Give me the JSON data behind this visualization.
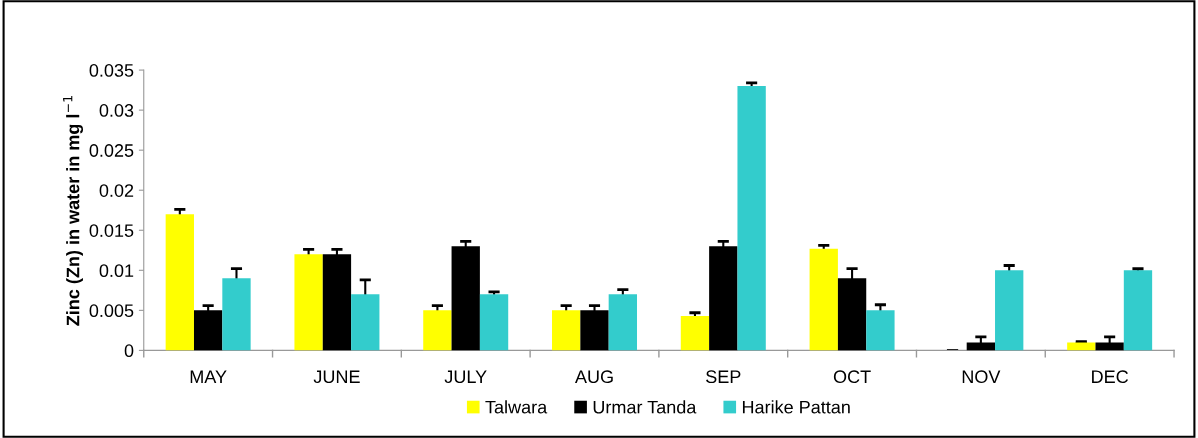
{
  "chart_data": {
    "type": "bar",
    "ylabel": "Zinc (Zn) in water in mg l$^{−1}$",
    "categories": [
      "MAY",
      "JUNE",
      "JULY",
      "AUG",
      "SEP",
      "OCT",
      "NOV",
      "DEC"
    ],
    "series": [
      {
        "name": "Talwara",
        "color": "#ffff00",
        "values": [
          0.017,
          0.012,
          0.005,
          0.005,
          0.0043,
          0.0127,
          0.0,
          0.001
        ],
        "errors": [
          0.0006,
          0.0006,
          0.0006,
          0.0006,
          0.0004,
          0.0004,
          null,
          0.0001
        ]
      },
      {
        "name": "Urmar Tanda",
        "color": "#000000",
        "values": [
          0.005,
          0.012,
          0.013,
          0.005,
          0.013,
          0.009,
          0.001,
          0.001
        ],
        "errors": [
          0.0006,
          0.0006,
          0.0006,
          0.0006,
          0.0006,
          0.0012,
          0.0007,
          0.0007
        ]
      },
      {
        "name": "Harike Pattan",
        "color": "#33cccc",
        "values": [
          0.009,
          0.007,
          0.007,
          0.007,
          0.033,
          0.005,
          0.01,
          0.01
        ],
        "errors": [
          0.0012,
          0.0018,
          0.0003,
          0.0006,
          0.0004,
          0.0007,
          0.0006,
          0.0002
        ]
      }
    ],
    "ylim": [
      0,
      0.035
    ],
    "yticks": [
      0,
      0.005,
      0.01,
      0.015,
      0.02,
      0.025,
      0.03,
      0.035
    ],
    "grid": false,
    "legend": "bottom"
  }
}
